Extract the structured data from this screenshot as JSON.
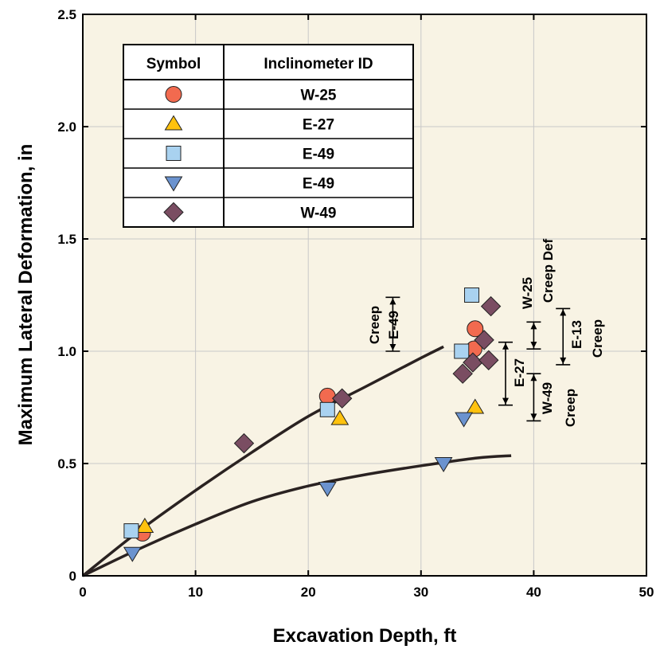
{
  "chart_data": {
    "type": "scatter",
    "xlabel": "Excavation Depth, ft",
    "ylabel": "Maximum Lateral Deformation, in",
    "xlim": [
      0,
      50
    ],
    "ylim": [
      0,
      2.5
    ],
    "xticks": [
      "0",
      "10",
      "20",
      "30",
      "40",
      "50"
    ],
    "yticks": [
      "0",
      "0.5",
      "1.0",
      "1.5",
      "2.0",
      "2.5"
    ],
    "grid": true,
    "colors": {
      "plot_bg": "#f8f3e4",
      "grid": "#c8c8c8",
      "curve": "#2a2221"
    },
    "legend": {
      "placement": "top-left",
      "headers": [
        "Symbol",
        "Inclinometer ID"
      ],
      "entries": [
        {
          "label": "W-25",
          "marker": "circle",
          "color": "#f26a4f"
        },
        {
          "label": "E-27",
          "marker": "triangle-up",
          "color": "#ffc20e"
        },
        {
          "label": "E-49",
          "marker": "square",
          "color": "#a9d2f0"
        },
        {
          "label": "E-49",
          "marker": "triangle-down",
          "color": "#6b93cf"
        },
        {
          "label": "W-49",
          "marker": "diamond",
          "color": "#7a4d62"
        }
      ]
    },
    "series": [
      {
        "marker": "circle",
        "color": "#f26a4f",
        "points": [
          [
            5.3,
            0.19
          ],
          [
            21.7,
            0.8
          ],
          [
            34.7,
            1.01
          ],
          [
            34.8,
            1.1
          ]
        ]
      },
      {
        "marker": "triangle-up",
        "color": "#ffc20e",
        "points": [
          [
            5.5,
            0.22
          ],
          [
            22.8,
            0.7
          ],
          [
            34.8,
            0.75
          ]
        ]
      },
      {
        "marker": "square",
        "color": "#a9d2f0",
        "points": [
          [
            4.3,
            0.2
          ],
          [
            21.7,
            0.74
          ],
          [
            33.6,
            1.0
          ],
          [
            34.5,
            1.25
          ]
        ]
      },
      {
        "marker": "triangle-down",
        "color": "#6b93cf",
        "points": [
          [
            4.4,
            0.1
          ],
          [
            21.7,
            0.39
          ],
          [
            32.0,
            0.5
          ],
          [
            33.8,
            0.7
          ]
        ]
      },
      {
        "marker": "diamond",
        "color": "#7a4d62",
        "points": [
          [
            14.3,
            0.59
          ],
          [
            23.0,
            0.79
          ],
          [
            33.7,
            0.9
          ],
          [
            34.6,
            0.95
          ],
          [
            35.6,
            1.05
          ],
          [
            36.0,
            0.96
          ],
          [
            36.2,
            1.2
          ]
        ]
      }
    ],
    "curves": [
      {
        "points": [
          [
            0,
            0
          ],
          [
            5,
            0.2
          ],
          [
            10,
            0.38
          ],
          [
            15,
            0.55
          ],
          [
            20,
            0.71
          ],
          [
            25,
            0.84
          ],
          [
            30,
            0.97
          ],
          [
            32,
            1.02
          ]
        ]
      },
      {
        "points": [
          [
            0,
            0
          ],
          [
            5,
            0.12
          ],
          [
            10,
            0.23
          ],
          [
            15,
            0.33
          ],
          [
            20,
            0.4
          ],
          [
            25,
            0.45
          ],
          [
            30,
            0.49
          ],
          [
            35,
            0.525
          ],
          [
            38,
            0.535
          ]
        ]
      }
    ],
    "annotations": [
      {
        "lines": [
          "Creep",
          "E-49"
        ],
        "x": 27.5,
        "y_range": [
          1.0,
          1.24
        ]
      },
      {
        "lines": [
          "W-25",
          "Creep Def"
        ],
        "x": 40.0,
        "y_range": [
          1.01,
          1.13
        ]
      },
      {
        "lines": [
          "E-13",
          "Creep"
        ],
        "x": 42.6,
        "y_range": [
          0.94,
          1.19
        ]
      },
      {
        "lines": [
          "E-27"
        ],
        "x": 37.5,
        "y_range": [
          0.76,
          1.04
        ]
      },
      {
        "lines": [
          "W-49",
          "Creep"
        ],
        "x": 40.0,
        "y_range": [
          0.69,
          0.9
        ]
      }
    ]
  }
}
